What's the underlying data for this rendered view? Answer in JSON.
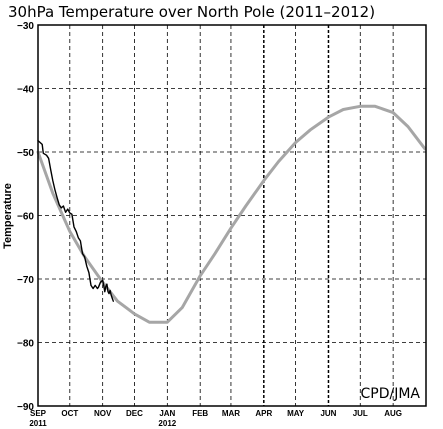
{
  "chart_data": {
    "type": "line",
    "title": "30hPa Temperature over North Pole (2011–2012)",
    "ylabel": "Temperature",
    "xlabel": "",
    "ylim": [
      -90,
      -30
    ],
    "yticks": [
      -30,
      -40,
      -50,
      -60,
      -70,
      -80,
      -90
    ],
    "ytick_labels": [
      "−30",
      "−40",
      "−50",
      "−60",
      "−70",
      "−80",
      "−90"
    ],
    "x_axis": "months from 1 Sep 2011 to 31 Aug 2012",
    "xtick_labels": [
      "SEP",
      "OCT",
      "NOV",
      "DEC",
      "JAN",
      "FEB",
      "MAR",
      "APR",
      "MAY",
      "JUN",
      "JUL",
      "AUG"
    ],
    "year_labels": [
      {
        "text": "2011",
        "month": "SEP"
      },
      {
        "text": "2012",
        "month": "JAN"
      }
    ],
    "grid": true,
    "emphasized_gridlines": [
      "APR",
      "JUN"
    ],
    "annotation": "CPD/JMA",
    "annotation_position": "bottom-right",
    "series": [
      {
        "color": "#a6a6a6",
        "description_type": "climatology",
        "x": [
          "2011-09-01",
          "2011-09-15",
          "2011-10-01",
          "2011-10-15",
          "2011-11-01",
          "2011-11-15",
          "2011-12-01",
          "2011-12-15",
          "2012-01-01",
          "2012-01-15",
          "2012-02-01",
          "2012-02-15",
          "2012-03-01",
          "2012-03-15",
          "2012-04-01",
          "2012-04-15",
          "2012-05-01",
          "2012-05-15",
          "2012-06-01",
          "2012-06-15",
          "2012-07-01",
          "2012-07-15",
          "2012-08-01",
          "2012-08-15",
          "2012-08-31"
        ],
        "values": [
          -50.0,
          -56.5,
          -62.5,
          -66.5,
          -70.5,
          -73.5,
          -75.5,
          -76.8,
          -76.8,
          -74.5,
          -69.5,
          -66.0,
          -62.0,
          -58.5,
          -54.5,
          -51.5,
          -48.5,
          -46.5,
          -44.5,
          -43.3,
          -42.8,
          -42.8,
          -43.8,
          -46.0,
          -49.5
        ]
      },
      {
        "color": "#000000",
        "description_type": "observed",
        "x": [
          "2011-09-01",
          "2011-09-03",
          "2011-09-05",
          "2011-09-06",
          "2011-09-09",
          "2011-09-11",
          "2011-09-13",
          "2011-09-15",
          "2011-09-17",
          "2011-09-19",
          "2011-09-21",
          "2011-09-23",
          "2011-09-25",
          "2011-09-27",
          "2011-09-29",
          "2011-10-01",
          "2011-10-03",
          "2011-10-05",
          "2011-10-07",
          "2011-10-09",
          "2011-10-11",
          "2011-10-13",
          "2011-10-15",
          "2011-10-17",
          "2011-10-19",
          "2011-10-21",
          "2011-10-23",
          "2011-10-25",
          "2011-10-27",
          "2011-10-28",
          "2011-10-30",
          "2011-11-01",
          "2011-11-02",
          "2011-11-03",
          "2011-11-04",
          "2011-11-05",
          "2011-11-06",
          "2011-11-07",
          "2011-11-08",
          "2011-11-09",
          "2011-11-10",
          "2011-11-11"
        ],
        "values": [
          -48.2,
          -48.5,
          -48.8,
          -50.2,
          -50.5,
          -51.0,
          -52.8,
          -54.5,
          -56.0,
          -57.2,
          -58.3,
          -58.8,
          -58.5,
          -59.5,
          -59.0,
          -59.6,
          -59.8,
          -61.8,
          -62.5,
          -63.5,
          -64.0,
          -66.0,
          -66.5,
          -68.0,
          -69.0,
          -71.0,
          -71.5,
          -71.0,
          -71.5,
          -71.3,
          -70.5,
          -70.2,
          -71.0,
          -72.0,
          -71.2,
          -70.8,
          -72.0,
          -72.3,
          -71.8,
          -72.5,
          -73.0,
          -73.5
        ]
      }
    ]
  }
}
